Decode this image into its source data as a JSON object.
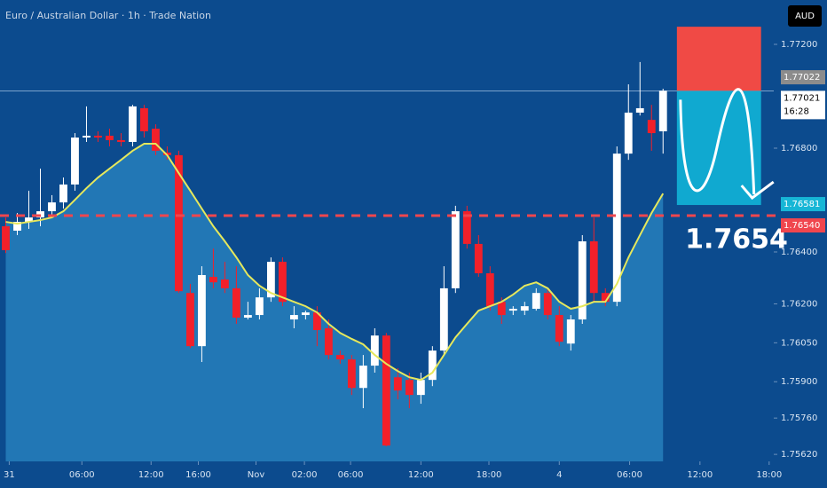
{
  "chart_data": {
    "type": "candlestick",
    "title": "Euro / Australian Dollar · 1h · Trade Nation",
    "currency_button": "AUD",
    "up_color": "#ffffff",
    "down_color": "#f2202a",
    "x": [
      0,
      1,
      2,
      3,
      4,
      5,
      6,
      7,
      8,
      9,
      10,
      11,
      12,
      13,
      14,
      15,
      16,
      17,
      18,
      19,
      20,
      21,
      22,
      23,
      24,
      25,
      26,
      27,
      28,
      29,
      30,
      31,
      32,
      33,
      34,
      35,
      36,
      37,
      38,
      39,
      40,
      41,
      42,
      43,
      44,
      45,
      46,
      47,
      48,
      49,
      50,
      51,
      52,
      53,
      54,
      55,
      56,
      57
    ],
    "open": [
      1.76499,
      1.76482,
      1.76516,
      1.76533,
      1.76557,
      1.76591,
      1.7666,
      1.76841,
      1.76848,
      1.76848,
      1.76831,
      1.76824,
      1.76954,
      1.76875,
      1.76783,
      1.76773,
      1.76242,
      1.76037,
      1.76304,
      1.76294,
      1.7626,
      1.76147,
      1.76157,
      1.76225,
      1.76362,
      1.7614,
      1.76157,
      1.76167,
      1.76106,
      1.76003,
      1.75986,
      1.75876,
      1.75962,
      1.76078,
      1.75917,
      1.75907,
      1.75849,
      1.75907,
      1.7602,
      1.7626,
      1.76557,
      1.76431,
      1.76318,
      1.76208,
      1.76174,
      1.76174,
      1.76181,
      1.76242,
      1.76157,
      1.76047,
      1.7614,
      1.76441,
      1.76242,
      1.76208,
      1.76779,
      1.76937,
      1.76909,
      1.76865
    ],
    "high": [
      1.76533,
      1.7655,
      1.76636,
      1.76721,
      1.76619,
      1.76687,
      1.76858,
      1.76961,
      1.76865,
      1.76875,
      1.76858,
      1.76967,
      1.76967,
      1.76892,
      1.76807,
      1.7679,
      1.76277,
      1.76345,
      1.76413,
      1.76362,
      1.76345,
      1.76208,
      1.7626,
      1.76379,
      1.76379,
      1.76191,
      1.76174,
      1.76191,
      1.7614,
      1.7602,
      1.76003,
      1.76003,
      1.76106,
      1.76088,
      1.75952,
      1.75935,
      1.75935,
      1.76037,
      1.76345,
      1.76578,
      1.76578,
      1.76465,
      1.76345,
      1.76225,
      1.76191,
      1.76208,
      1.7626,
      1.7626,
      1.76191,
      1.76157,
      1.76465,
      1.76533,
      1.7626,
      1.76807,
      1.77046,
      1.77132,
      1.76967,
      1.77029
    ],
    "low": [
      1.76396,
      1.76465,
      1.76489,
      1.76499,
      1.76533,
      1.76567,
      1.76636,
      1.76824,
      1.76824,
      1.76807,
      1.76807,
      1.76807,
      1.76841,
      1.76773,
      1.76755,
      1.76242,
      1.7603,
      1.75976,
      1.7626,
      1.76242,
      1.76123,
      1.7614,
      1.7614,
      1.76208,
      1.76191,
      1.76106,
      1.7614,
      1.76037,
      1.75986,
      1.75969,
      1.75849,
      1.75798,
      1.75935,
      1.75651,
      1.75832,
      1.75798,
      1.75815,
      1.75883,
      1.76003,
      1.76242,
      1.76413,
      1.76304,
      1.76174,
      1.76123,
      1.76157,
      1.76157,
      1.76174,
      1.7614,
      1.76037,
      1.7602,
      1.76123,
      1.76208,
      1.76191,
      1.76191,
      1.76755,
      1.76926,
      1.7679,
      1.76779
    ],
    "close": [
      1.76407,
      1.76516,
      1.76533,
      1.76557,
      1.76591,
      1.7666,
      1.76841,
      1.76848,
      1.76841,
      1.76831,
      1.76824,
      1.76961,
      1.76865,
      1.7679,
      1.76773,
      1.76249,
      1.76037,
      1.76311,
      1.76283,
      1.7626,
      1.76147,
      1.76157,
      1.76225,
      1.76362,
      1.76208,
      1.76157,
      1.76167,
      1.76099,
      1.76003,
      1.75986,
      1.75876,
      1.75962,
      1.76078,
      1.75654,
      1.75866,
      1.75849,
      1.75907,
      1.7602,
      1.7626,
      1.76557,
      1.76431,
      1.76318,
      1.76191,
      1.76157,
      1.76181,
      1.76191,
      1.76242,
      1.76157,
      1.76054,
      1.7614,
      1.76441,
      1.76242,
      1.76208,
      1.76779,
      1.76937,
      1.76954,
      1.76858,
      1.77021
    ],
    "moving_average": {
      "color": "#e6e85c",
      "area_color": "#2a86c2",
      "values": [
        1.76516,
        1.76509,
        1.76516,
        1.76523,
        1.76533,
        1.76557,
        1.76601,
        1.76646,
        1.76687,
        1.76721,
        1.76755,
        1.7679,
        1.76817,
        1.76817,
        1.76773,
        1.76704,
        1.76636,
        1.76567,
        1.76499,
        1.76441,
        1.76379,
        1.76311,
        1.7627,
        1.76242,
        1.76225,
        1.76208,
        1.76191,
        1.76167,
        1.76123,
        1.76088,
        1.76065,
        1.76044,
        1.76003,
        1.75969,
        1.75941,
        1.75917,
        1.75907,
        1.75935,
        1.76003,
        1.76071,
        1.76123,
        1.76174,
        1.76191,
        1.76208,
        1.76236,
        1.7627,
        1.76283,
        1.7626,
        1.76208,
        1.76181,
        1.76191,
        1.76208,
        1.76208,
        1.76277,
        1.76379,
        1.76465,
        1.7655,
        1.76625
      ]
    },
    "ylim": [
      1.75593,
      1.77371
    ],
    "yticks": [
      {
        "value": 1.772,
        "label": "1.77200"
      },
      {
        "value": 1.768,
        "label": "1.76800"
      },
      {
        "value": 1.764,
        "label": "1.76400"
      },
      {
        "value": 1.762,
        "label": "1.76200"
      },
      {
        "value": 1.7605,
        "label": "1.76050"
      },
      {
        "value": 1.759,
        "label": "1.75900"
      },
      {
        "value": 1.7576,
        "label": "1.75760"
      },
      {
        "value": 1.7562,
        "label": "1.75620"
      }
    ],
    "xlim": [
      -0.5,
      66.6
    ],
    "xticks": [
      {
        "value": 0.3,
        "label": "31"
      },
      {
        "value": 6.6,
        "label": "06:00"
      },
      {
        "value": 12.6,
        "label": "12:00"
      },
      {
        "value": 16.7,
        "label": "16:00"
      },
      {
        "value": 21.7,
        "label": "Nov"
      },
      {
        "value": 25.9,
        "label": "02:00"
      },
      {
        "value": 29.9,
        "label": "06:00"
      },
      {
        "value": 36.0,
        "label": "12:00"
      },
      {
        "value": 41.9,
        "label": "18:00"
      },
      {
        "value": 48.0,
        "label": "4"
      },
      {
        "value": 54.1,
        "label": "06:00"
      },
      {
        "value": 60.2,
        "label": "12:00"
      },
      {
        "value": 66.2,
        "label": "18:00"
      }
    ],
    "position": {
      "x": [
        58.2,
        65.5
      ],
      "stop": 1.77268,
      "entry": 1.77021,
      "target": 1.76581,
      "stop_color": "#f04a45",
      "target_color": "#10a9d0"
    },
    "level_line": 1.7654,
    "level_color": "#f0464e",
    "price_labels": [
      {
        "value": 1.77022,
        "label": "1.77022",
        "color": "#8c8c8c"
      },
      {
        "value": 1.77021,
        "label": "1.77021",
        "countdown": "16:28",
        "color": "#ffffff"
      },
      {
        "value": 1.76581,
        "label": "1.76581",
        "color": "#17b6d6"
      },
      {
        "value": 1.7654,
        "label": "1.76540",
        "color": "#f0464e"
      }
    ]
  }
}
